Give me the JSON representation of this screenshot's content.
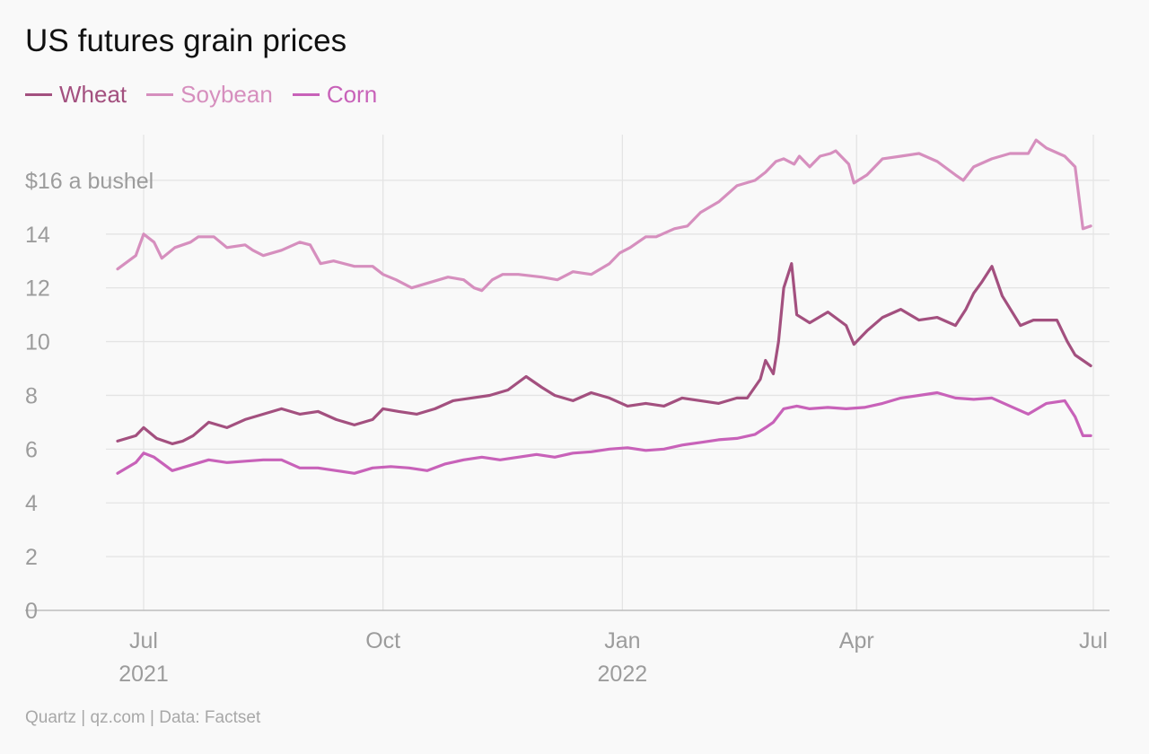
{
  "title": "US futures grain prices",
  "source": "Quartz | qz.com | Data: Factset",
  "legend": [
    {
      "label": "Wheat",
      "color": "#a3507f"
    },
    {
      "label": "Soybean",
      "color": "#d68fbe"
    },
    {
      "label": "Corn",
      "color": "#c862b9"
    }
  ],
  "chart_data": {
    "type": "line",
    "title": "US futures grain prices",
    "ylabel": "$16 a bushel",
    "ylim": [
      0,
      17.7
    ],
    "xlim": [
      "2021-06-10",
      "2022-07-05"
    ],
    "grid": true,
    "legend_position": "top-left",
    "y_ticks": [
      {
        "value": 0,
        "label": "0"
      },
      {
        "value": 2,
        "label": "2"
      },
      {
        "value": 4,
        "label": "4"
      },
      {
        "value": 6,
        "label": "6"
      },
      {
        "value": 8,
        "label": "8"
      },
      {
        "value": 10,
        "label": "10"
      },
      {
        "value": 12,
        "label": "12"
      },
      {
        "value": 14,
        "label": "14"
      },
      {
        "value": 16,
        "label": "$16 a bushel"
      }
    ],
    "x_ticks": [
      {
        "date": "2021-07-01",
        "label": "Jul",
        "sublabel": "2021"
      },
      {
        "date": "2021-10-01",
        "label": "Oct",
        "sublabel": ""
      },
      {
        "date": "2022-01-01",
        "label": "Jan",
        "sublabel": "2022"
      },
      {
        "date": "2022-04-01",
        "label": "Apr",
        "sublabel": ""
      },
      {
        "date": "2022-07-01",
        "label": "Jul",
        "sublabel": ""
      }
    ],
    "series": [
      {
        "name": "Soybean",
        "color": "#d68fbe",
        "points": [
          [
            "2021-06-21",
            12.7
          ],
          [
            "2021-06-28",
            13.2
          ],
          [
            "2021-07-01",
            14.0
          ],
          [
            "2021-07-05",
            13.7
          ],
          [
            "2021-07-08",
            13.1
          ],
          [
            "2021-07-13",
            13.5
          ],
          [
            "2021-07-19",
            13.7
          ],
          [
            "2021-07-22",
            13.9
          ],
          [
            "2021-07-28",
            13.9
          ],
          [
            "2021-08-02",
            13.5
          ],
          [
            "2021-08-09",
            13.6
          ],
          [
            "2021-08-12",
            13.4
          ],
          [
            "2021-08-16",
            13.2
          ],
          [
            "2021-08-23",
            13.4
          ],
          [
            "2021-08-30",
            13.7
          ],
          [
            "2021-09-03",
            13.6
          ],
          [
            "2021-09-07",
            12.9
          ],
          [
            "2021-09-12",
            13.0
          ],
          [
            "2021-09-20",
            12.8
          ],
          [
            "2021-09-27",
            12.8
          ],
          [
            "2021-10-01",
            12.5
          ],
          [
            "2021-10-06",
            12.3
          ],
          [
            "2021-10-08",
            12.2
          ],
          [
            "2021-10-12",
            12.0
          ],
          [
            "2021-10-19",
            12.2
          ],
          [
            "2021-10-26",
            12.4
          ],
          [
            "2021-11-01",
            12.3
          ],
          [
            "2021-11-05",
            12.0
          ],
          [
            "2021-11-08",
            11.9
          ],
          [
            "2021-11-12",
            12.3
          ],
          [
            "2021-11-16",
            12.5
          ],
          [
            "2021-11-22",
            12.5
          ],
          [
            "2021-12-01",
            12.4
          ],
          [
            "2021-12-07",
            12.3
          ],
          [
            "2021-12-13",
            12.6
          ],
          [
            "2021-12-20",
            12.5
          ],
          [
            "2021-12-27",
            12.9
          ],
          [
            "2021-12-31",
            13.3
          ],
          [
            "2022-01-04",
            13.5
          ],
          [
            "2022-01-10",
            13.9
          ],
          [
            "2022-01-14",
            13.9
          ],
          [
            "2022-01-21",
            14.2
          ],
          [
            "2022-01-26",
            14.3
          ],
          [
            "2022-01-31",
            14.8
          ],
          [
            "2022-02-07",
            15.2
          ],
          [
            "2022-02-14",
            15.8
          ],
          [
            "2022-02-21",
            16.0
          ],
          [
            "2022-02-25",
            16.3
          ],
          [
            "2022-03-01",
            16.7
          ],
          [
            "2022-03-04",
            16.8
          ],
          [
            "2022-03-08",
            16.6
          ],
          [
            "2022-03-10",
            16.9
          ],
          [
            "2022-03-14",
            16.5
          ],
          [
            "2022-03-18",
            16.9
          ],
          [
            "2022-03-22",
            17.0
          ],
          [
            "2022-03-24",
            17.1
          ],
          [
            "2022-03-29",
            16.6
          ],
          [
            "2022-03-31",
            15.9
          ],
          [
            "2022-04-05",
            16.2
          ],
          [
            "2022-04-11",
            16.8
          ],
          [
            "2022-04-18",
            16.9
          ],
          [
            "2022-04-25",
            17.0
          ],
          [
            "2022-05-02",
            16.7
          ],
          [
            "2022-05-09",
            16.2
          ],
          [
            "2022-05-12",
            16.0
          ],
          [
            "2022-05-16",
            16.5
          ],
          [
            "2022-05-23",
            16.8
          ],
          [
            "2022-05-30",
            17.0
          ],
          [
            "2022-06-06",
            17.0
          ],
          [
            "2022-06-09",
            17.5
          ],
          [
            "2022-06-13",
            17.2
          ],
          [
            "2022-06-20",
            16.9
          ],
          [
            "2022-06-24",
            16.5
          ],
          [
            "2022-06-27",
            14.2
          ],
          [
            "2022-06-30",
            14.3
          ]
        ]
      },
      {
        "name": "Wheat",
        "color": "#a3507f",
        "points": [
          [
            "2021-06-21",
            6.3
          ],
          [
            "2021-06-28",
            6.5
          ],
          [
            "2021-07-01",
            6.8
          ],
          [
            "2021-07-06",
            6.4
          ],
          [
            "2021-07-12",
            6.2
          ],
          [
            "2021-07-16",
            6.3
          ],
          [
            "2021-07-20",
            6.5
          ],
          [
            "2021-07-26",
            7.0
          ],
          [
            "2021-08-02",
            6.8
          ],
          [
            "2021-08-09",
            7.1
          ],
          [
            "2021-08-16",
            7.3
          ],
          [
            "2021-08-23",
            7.5
          ],
          [
            "2021-08-30",
            7.3
          ],
          [
            "2021-09-06",
            7.4
          ],
          [
            "2021-09-13",
            7.1
          ],
          [
            "2021-09-20",
            6.9
          ],
          [
            "2021-09-27",
            7.1
          ],
          [
            "2021-10-01",
            7.5
          ],
          [
            "2021-10-07",
            7.4
          ],
          [
            "2021-10-14",
            7.3
          ],
          [
            "2021-10-21",
            7.5
          ],
          [
            "2021-10-28",
            7.8
          ],
          [
            "2021-11-04",
            7.9
          ],
          [
            "2021-11-11",
            8.0
          ],
          [
            "2021-11-18",
            8.2
          ],
          [
            "2021-11-25",
            8.7
          ],
          [
            "2021-12-01",
            8.3
          ],
          [
            "2021-12-06",
            8.0
          ],
          [
            "2021-12-13",
            7.8
          ],
          [
            "2021-12-20",
            8.1
          ],
          [
            "2021-12-27",
            7.9
          ],
          [
            "2022-01-03",
            7.6
          ],
          [
            "2022-01-10",
            7.7
          ],
          [
            "2022-01-17",
            7.6
          ],
          [
            "2022-01-24",
            7.9
          ],
          [
            "2022-01-31",
            7.8
          ],
          [
            "2022-02-07",
            7.7
          ],
          [
            "2022-02-14",
            7.9
          ],
          [
            "2022-02-18",
            7.9
          ],
          [
            "2022-02-23",
            8.6
          ],
          [
            "2022-02-25",
            9.3
          ],
          [
            "2022-02-28",
            8.8
          ],
          [
            "2022-03-02",
            10.0
          ],
          [
            "2022-03-04",
            12.0
          ],
          [
            "2022-03-07",
            12.9
          ],
          [
            "2022-03-09",
            11.0
          ],
          [
            "2022-03-14",
            10.7
          ],
          [
            "2022-03-21",
            11.1
          ],
          [
            "2022-03-28",
            10.6
          ],
          [
            "2022-03-31",
            9.9
          ],
          [
            "2022-04-05",
            10.4
          ],
          [
            "2022-04-11",
            10.9
          ],
          [
            "2022-04-18",
            11.2
          ],
          [
            "2022-04-25",
            10.8
          ],
          [
            "2022-05-02",
            10.9
          ],
          [
            "2022-05-09",
            10.6
          ],
          [
            "2022-05-13",
            11.2
          ],
          [
            "2022-05-16",
            11.8
          ],
          [
            "2022-05-19",
            12.2
          ],
          [
            "2022-05-23",
            12.8
          ],
          [
            "2022-05-27",
            11.7
          ],
          [
            "2022-06-03",
            10.6
          ],
          [
            "2022-06-08",
            10.8
          ],
          [
            "2022-06-13",
            10.8
          ],
          [
            "2022-06-17",
            10.8
          ],
          [
            "2022-06-21",
            10.0
          ],
          [
            "2022-06-24",
            9.5
          ],
          [
            "2022-06-30",
            9.1
          ]
        ]
      },
      {
        "name": "Corn",
        "color": "#c862b9",
        "points": [
          [
            "2021-06-21",
            5.1
          ],
          [
            "2021-06-28",
            5.5
          ],
          [
            "2021-07-01",
            5.85
          ],
          [
            "2021-07-05",
            5.7
          ],
          [
            "2021-07-12",
            5.2
          ],
          [
            "2021-07-19",
            5.4
          ],
          [
            "2021-07-26",
            5.6
          ],
          [
            "2021-08-02",
            5.5
          ],
          [
            "2021-08-09",
            5.55
          ],
          [
            "2021-08-16",
            5.6
          ],
          [
            "2021-08-23",
            5.6
          ],
          [
            "2021-08-30",
            5.3
          ],
          [
            "2021-09-06",
            5.3
          ],
          [
            "2021-09-13",
            5.2
          ],
          [
            "2021-09-20",
            5.1
          ],
          [
            "2021-09-27",
            5.3
          ],
          [
            "2021-10-04",
            5.35
          ],
          [
            "2021-10-11",
            5.3
          ],
          [
            "2021-10-18",
            5.2
          ],
          [
            "2021-10-25",
            5.45
          ],
          [
            "2021-11-01",
            5.6
          ],
          [
            "2021-11-08",
            5.7
          ],
          [
            "2021-11-15",
            5.6
          ],
          [
            "2021-11-22",
            5.7
          ],
          [
            "2021-11-29",
            5.8
          ],
          [
            "2021-12-06",
            5.7
          ],
          [
            "2021-12-13",
            5.85
          ],
          [
            "2021-12-20",
            5.9
          ],
          [
            "2021-12-27",
            6.0
          ],
          [
            "2022-01-03",
            6.05
          ],
          [
            "2022-01-10",
            5.95
          ],
          [
            "2022-01-17",
            6.0
          ],
          [
            "2022-01-24",
            6.15
          ],
          [
            "2022-01-31",
            6.25
          ],
          [
            "2022-02-07",
            6.35
          ],
          [
            "2022-02-14",
            6.4
          ],
          [
            "2022-02-21",
            6.55
          ],
          [
            "2022-02-25",
            6.8
          ],
          [
            "2022-02-28",
            7.0
          ],
          [
            "2022-03-04",
            7.5
          ],
          [
            "2022-03-09",
            7.6
          ],
          [
            "2022-03-14",
            7.5
          ],
          [
            "2022-03-21",
            7.55
          ],
          [
            "2022-03-28",
            7.5
          ],
          [
            "2022-04-04",
            7.55
          ],
          [
            "2022-04-11",
            7.7
          ],
          [
            "2022-04-18",
            7.9
          ],
          [
            "2022-04-25",
            8.0
          ],
          [
            "2022-05-02",
            8.1
          ],
          [
            "2022-05-09",
            7.9
          ],
          [
            "2022-05-16",
            7.85
          ],
          [
            "2022-05-23",
            7.9
          ],
          [
            "2022-05-30",
            7.6
          ],
          [
            "2022-06-06",
            7.3
          ],
          [
            "2022-06-13",
            7.7
          ],
          [
            "2022-06-20",
            7.8
          ],
          [
            "2022-06-24",
            7.2
          ],
          [
            "2022-06-27",
            6.5
          ],
          [
            "2022-06-30",
            6.5
          ]
        ]
      }
    ]
  }
}
